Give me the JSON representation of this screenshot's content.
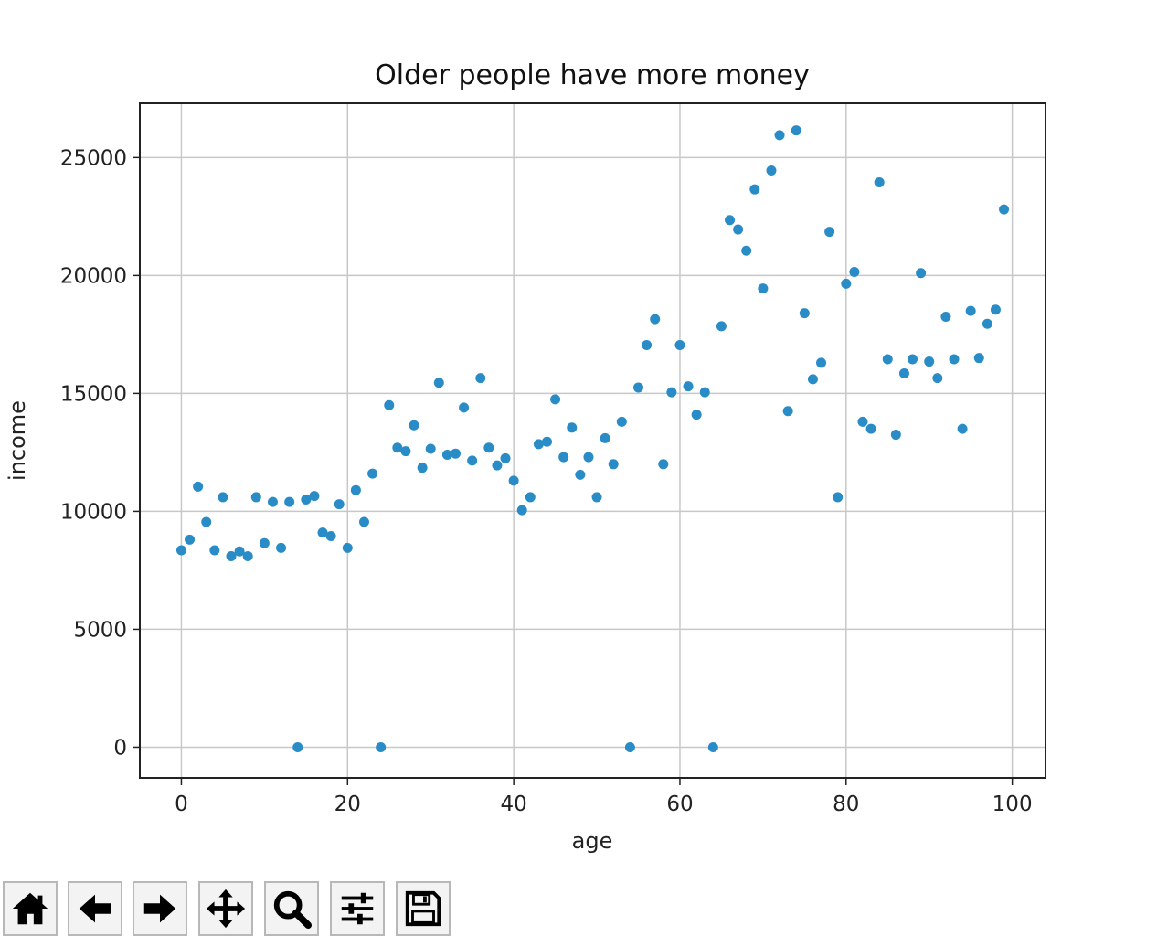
{
  "chart_data": {
    "type": "scatter",
    "title": "Older people have more money",
    "xlabel": "age",
    "ylabel": "income",
    "xlim": [
      -5,
      104
    ],
    "ylim": [
      -1300,
      27300
    ],
    "xticks": [
      "0",
      "20",
      "40",
      "60",
      "80",
      "100"
    ],
    "yticks": [
      "0",
      "5000",
      "10000",
      "15000",
      "20000",
      "25000"
    ],
    "xtick_values": [
      0,
      20,
      40,
      60,
      80,
      100
    ],
    "ytick_values": [
      0,
      5000,
      10000,
      15000,
      20000,
      25000
    ],
    "grid": true,
    "marker_color": "#2a8cc7",
    "points": [
      [
        0,
        8350
      ],
      [
        1,
        8800
      ],
      [
        2,
        11050
      ],
      [
        3,
        9550
      ],
      [
        4,
        8350
      ],
      [
        5,
        10600
      ],
      [
        6,
        8100
      ],
      [
        7,
        8300
      ],
      [
        8,
        8100
      ],
      [
        9,
        10600
      ],
      [
        10,
        8650
      ],
      [
        11,
        10400
      ],
      [
        12,
        8450
      ],
      [
        13,
        10400
      ],
      [
        14,
        0
      ],
      [
        15,
        10500
      ],
      [
        16,
        10650
      ],
      [
        17,
        9100
      ],
      [
        18,
        8950
      ],
      [
        19,
        10300
      ],
      [
        20,
        8450
      ],
      [
        21,
        10900
      ],
      [
        22,
        9550
      ],
      [
        23,
        11600
      ],
      [
        24,
        0
      ],
      [
        25,
        14500
      ],
      [
        26,
        12700
      ],
      [
        27,
        12550
      ],
      [
        28,
        13650
      ],
      [
        29,
        11850
      ],
      [
        30,
        12650
      ],
      [
        31,
        15450
      ],
      [
        32,
        12400
      ],
      [
        33,
        12450
      ],
      [
        34,
        14400
      ],
      [
        35,
        12150
      ],
      [
        36,
        15650
      ],
      [
        37,
        12700
      ],
      [
        38,
        11950
      ],
      [
        39,
        12250
      ],
      [
        40,
        11300
      ],
      [
        41,
        10050
      ],
      [
        42,
        10600
      ],
      [
        43,
        12850
      ],
      [
        44,
        12950
      ],
      [
        45,
        14750
      ],
      [
        46,
        12300
      ],
      [
        47,
        13550
      ],
      [
        48,
        11550
      ],
      [
        49,
        12300
      ],
      [
        50,
        10600
      ],
      [
        51,
        13100
      ],
      [
        52,
        12000
      ],
      [
        53,
        13800
      ],
      [
        54,
        0
      ],
      [
        55,
        15250
      ],
      [
        56,
        17050
      ],
      [
        57,
        18150
      ],
      [
        58,
        12000
      ],
      [
        59,
        15050
      ],
      [
        60,
        17050
      ],
      [
        61,
        15300
      ],
      [
        62,
        14100
      ],
      [
        63,
        15050
      ],
      [
        64,
        0
      ],
      [
        65,
        17850
      ],
      [
        66,
        22350
      ],
      [
        67,
        21950
      ],
      [
        68,
        21050
      ],
      [
        69,
        23650
      ],
      [
        70,
        19450
      ],
      [
        71,
        24450
      ],
      [
        72,
        25950
      ],
      [
        73,
        14250
      ],
      [
        74,
        26150
      ],
      [
        75,
        18400
      ],
      [
        76,
        15600
      ],
      [
        77,
        16300
      ],
      [
        78,
        21850
      ],
      [
        79,
        10600
      ],
      [
        80,
        19650
      ],
      [
        81,
        20150
      ],
      [
        82,
        13800
      ],
      [
        83,
        13500
      ],
      [
        84,
        23950
      ],
      [
        85,
        16450
      ],
      [
        86,
        13250
      ],
      [
        87,
        15850
      ],
      [
        88,
        16450
      ],
      [
        89,
        20100
      ],
      [
        90,
        16350
      ],
      [
        91,
        15650
      ],
      [
        92,
        18250
      ],
      [
        93,
        16450
      ],
      [
        94,
        13500
      ],
      [
        95,
        18500
      ],
      [
        96,
        16500
      ],
      [
        97,
        17950
      ],
      [
        98,
        18550
      ],
      [
        99,
        22800
      ]
    ]
  },
  "toolbar": {
    "buttons": [
      {
        "id": "home",
        "icon": "home-icon"
      },
      {
        "id": "back",
        "icon": "arrow-left-icon"
      },
      {
        "id": "forward",
        "icon": "arrow-right-icon"
      },
      {
        "id": "pan",
        "icon": "move-icon"
      },
      {
        "id": "zoom",
        "icon": "magnifier-icon"
      },
      {
        "id": "configure",
        "icon": "sliders-icon"
      },
      {
        "id": "save",
        "icon": "floppy-disk-icon"
      }
    ]
  }
}
